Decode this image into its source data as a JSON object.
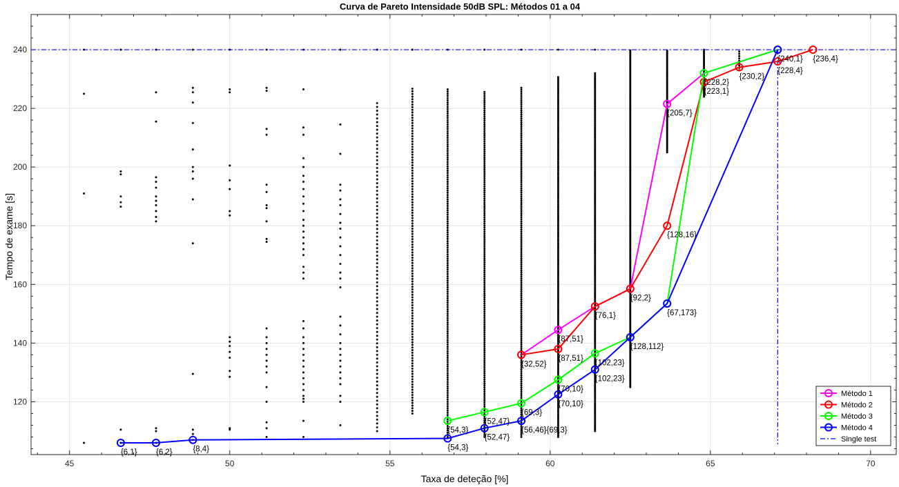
{
  "chart_data": {
    "type": "scatter",
    "title": "Curva de Pareto Intensidade 50dB SPL: Métodos 01 a 04",
    "xlabel": "Taxa de deteção [%]",
    "ylabel": "Tempo de exame [s]",
    "xlim": [
      43.8,
      70.8
    ],
    "ylim": [
      102,
      252
    ],
    "xticks": [
      45,
      50,
      55,
      60,
      65,
      70
    ],
    "yticks": [
      120,
      140,
      160,
      180,
      200,
      220,
      240
    ],
    "grid": true,
    "legend_position": "bottom-right",
    "single_test": {
      "name": "Single test",
      "y": 240,
      "x": 67.1,
      "color": "#0000ff"
    },
    "scatter_columns": [
      {
        "x": 45.45,
        "ys": [
          106,
          191,
          225,
          240
        ]
      },
      {
        "x": 46.6,
        "ys": [
          106,
          110.5,
          186.5,
          188,
          190,
          197.5,
          198.5,
          240
        ]
      },
      {
        "x": 47.7,
        "ys": [
          106,
          110,
          111,
          181.5,
          183,
          185,
          187,
          188.5,
          190,
          193,
          195,
          196.5,
          215.5,
          225.5,
          240
        ]
      },
      {
        "x": 48.85,
        "ys": [
          107,
          109,
          110.5,
          129.5,
          174,
          189,
          196,
          198.5,
          200,
          206,
          215,
          222,
          225.5,
          227,
          240
        ]
      },
      {
        "x": 50.0,
        "ys": [
          110.5,
          111,
          128.5,
          130.5,
          135,
          137,
          139,
          140.5,
          142,
          183.5,
          185,
          192.5,
          195.5,
          200.5,
          225.5,
          226.5,
          240
        ]
      },
      {
        "x": 51.15,
        "ys": [
          108,
          111,
          113,
          120,
          125,
          130,
          132,
          134,
          136,
          138,
          140,
          142,
          145,
          174.5,
          175.5,
          181.5,
          186,
          187,
          191.5,
          194,
          211,
          213,
          226,
          227,
          240
        ]
      },
      {
        "x": 52.3,
        "ys": [
          108,
          113.5,
          120,
          121,
          122,
          124,
          126,
          128,
          130,
          132,
          134,
          136,
          138,
          140,
          142,
          145,
          147.5,
          162,
          164,
          166,
          170,
          172,
          174,
          176,
          178,
          180,
          182,
          185,
          187.5,
          190,
          192.5,
          195,
          197,
          200,
          203,
          211,
          213.5,
          226.5,
          240
        ]
      },
      {
        "x": 53.45,
        "ys": [
          112,
          120,
          122,
          126,
          128,
          130,
          132,
          134,
          136,
          138,
          140,
          143,
          146,
          149,
          159,
          162,
          164,
          167,
          170,
          173,
          176,
          179,
          181,
          184,
          187,
          189,
          192,
          194,
          204.5,
          214.5,
          240
        ]
      }
    ],
    "series": [
      {
        "name": "Método 1",
        "color": "#ff00ff",
        "points": [
          {
            "x": 59.1,
            "y": 136
          },
          {
            "x": 60.25,
            "y": 144.5
          },
          {
            "x": 61.4,
            "y": 152.5
          },
          {
            "x": 62.5,
            "y": 158.5
          },
          {
            "x": 63.65,
            "y": 221.5
          },
          {
            "x": 64.8,
            "y": 232
          },
          {
            "x": 67.1,
            "y": 240
          }
        ]
      },
      {
        "name": "Método 2",
        "color": "#ff0000",
        "points": [
          {
            "x": 59.1,
            "y": 136
          },
          {
            "x": 60.25,
            "y": 138
          },
          {
            "x": 61.4,
            "y": 152.5
          },
          {
            "x": 62.5,
            "y": 158.5
          },
          {
            "x": 63.65,
            "y": 180
          },
          {
            "x": 64.8,
            "y": 229
          },
          {
            "x": 65.9,
            "y": 234
          },
          {
            "x": 67.1,
            "y": 236
          },
          {
            "x": 68.2,
            "y": 240
          }
        ]
      },
      {
        "name": "Método 3",
        "color": "#00ff00",
        "points": [
          {
            "x": 56.8,
            "y": 113.5
          },
          {
            "x": 57.95,
            "y": 116.5
          },
          {
            "x": 59.1,
            "y": 119.5
          },
          {
            "x": 60.25,
            "y": 127.5
          },
          {
            "x": 61.4,
            "y": 136.5
          },
          {
            "x": 62.5,
            "y": 142
          },
          {
            "x": 63.65,
            "y": 153.5
          },
          {
            "x": 64.8,
            "y": 232
          },
          {
            "x": 67.1,
            "y": 240
          }
        ]
      },
      {
        "name": "Método 4",
        "color": "#0000ff",
        "points": [
          {
            "x": 46.6,
            "y": 106
          },
          {
            "x": 47.7,
            "y": 106
          },
          {
            "x": 48.85,
            "y": 107
          },
          {
            "x": 56.8,
            "y": 107.5
          },
          {
            "x": 57.95,
            "y": 111
          },
          {
            "x": 59.1,
            "y": 113.5
          },
          {
            "x": 60.25,
            "y": 122.5
          },
          {
            "x": 61.4,
            "y": 131
          },
          {
            "x": 62.5,
            "y": 142
          },
          {
            "x": 63.65,
            "y": 153.5
          },
          {
            "x": 67.1,
            "y": 240
          }
        ]
      }
    ],
    "annotations": [
      {
        "text": "{6,1}",
        "x": 46.6,
        "y": 106
      },
      {
        "text": "{6,2}",
        "x": 47.7,
        "y": 106
      },
      {
        "text": "{8,4}",
        "x": 48.85,
        "y": 107
      },
      {
        "text": "{54,3}",
        "x": 56.8,
        "y": 113.5
      },
      {
        "text": "{54,3}",
        "x": 56.8,
        "y": 107.5
      },
      {
        "text": "{52,47}",
        "x": 57.95,
        "y": 116.5
      },
      {
        "text": "{52,47}",
        "x": 57.95,
        "y": 111
      },
      {
        "text": "{69,3}",
        "x": 59.1,
        "y": 119.5
      },
      {
        "text": "{56,46}{69,3}",
        "x": 59.1,
        "y": 113.5
      },
      {
        "text": "{32,52}",
        "x": 59.1,
        "y": 136
      },
      {
        "text": "{87,51}",
        "x": 60.25,
        "y": 144.5
      },
      {
        "text": "{87,51}",
        "x": 60.25,
        "y": 138
      },
      {
        "text": "{70,10}",
        "x": 60.25,
        "y": 127.5
      },
      {
        "text": "{70,10}",
        "x": 60.25,
        "y": 122.5
      },
      {
        "text": "{76,1}",
        "x": 61.4,
        "y": 152.5
      },
      {
        "text": "{102,23}",
        "x": 61.4,
        "y": 136.5
      },
      {
        "text": "{102,23}",
        "x": 61.4,
        "y": 131
      },
      {
        "text": "{92,2}",
        "x": 62.5,
        "y": 158.5
      },
      {
        "text": "{128,112}",
        "x": 62.5,
        "y": 142
      },
      {
        "text": "{205,7}",
        "x": 63.65,
        "y": 221.5
      },
      {
        "text": "{128,16}",
        "x": 63.65,
        "y": 180
      },
      {
        "text": "{67,173}",
        "x": 63.65,
        "y": 153.5
      },
      {
        "text": "{228,2}",
        "x": 64.8,
        "y": 232
      },
      {
        "text": "{223,1}",
        "x": 64.8,
        "y": 229
      },
      {
        "text": "{230,2}",
        "x": 65.9,
        "y": 234
      },
      {
        "text": "{240,1}",
        "x": 67.1,
        "y": 240
      },
      {
        "text": "{228,4}",
        "x": 67.1,
        "y": 236
      },
      {
        "text": "{236,4}",
        "x": 68.2,
        "y": 240
      }
    ]
  }
}
